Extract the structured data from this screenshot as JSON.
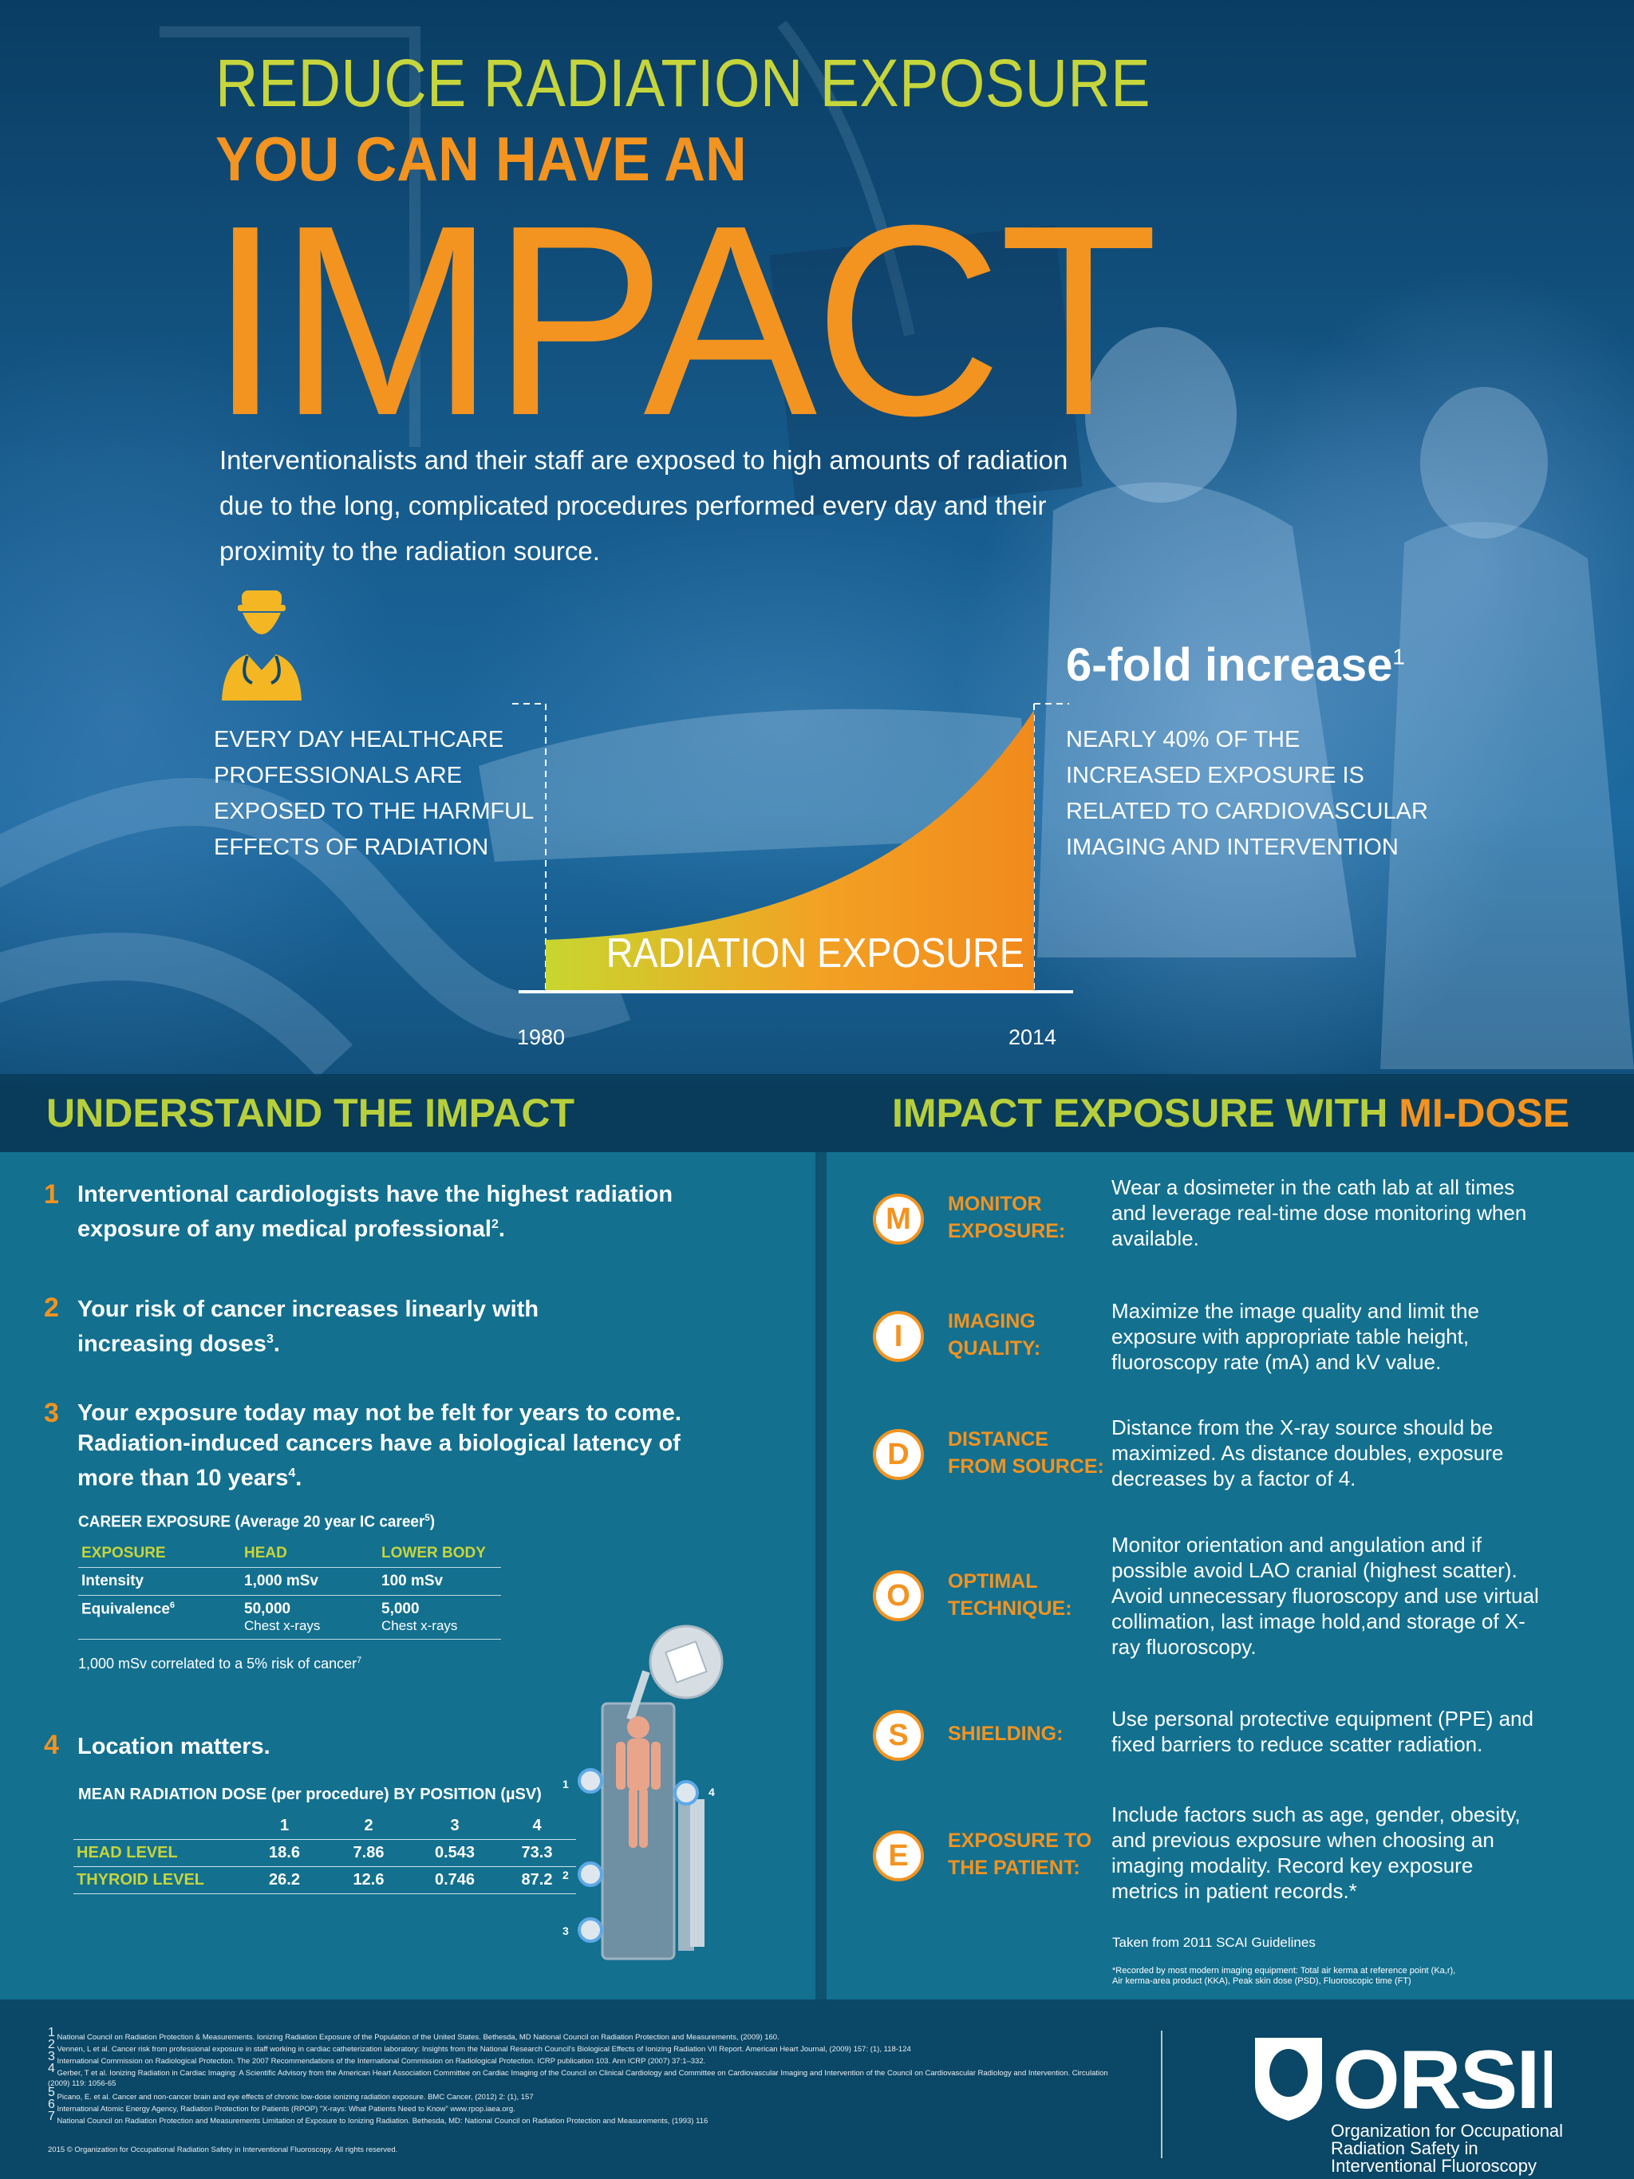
{
  "hero": {
    "title_line1": "REDUCE RADIATION EXPOSURE",
    "title_line2": "YOU CAN HAVE AN",
    "title_line3": "IMPACT",
    "intro": "Interventionalists and their staff are exposed to high amounts of radiation due to the long, complicated procedures performed every day and their proximity to the radiation source.",
    "left_note": "EVERY DAY HEALTHCARE PROFESSIONALS ARE EXPOSED TO THE HARMFUL EFFECTS OF RADIATION",
    "fold_text": "6-fold increase",
    "fold_sup": "1",
    "right_note": "NEARLY 40% OF THE INCREASED EXPOSURE IS RELATED TO CARDIOVASCULAR IMAGING AND INTERVENTION",
    "chart_label": "RADIATION EXPOSURE",
    "year_start": "1980",
    "year_end": "2014"
  },
  "understand": {
    "header": "UNDERSTAND THE IMPACT",
    "points": [
      {
        "num": "1",
        "text": "Interventional cardiologists have the highest radiation exposure of any medical professional",
        "sup": "2",
        "end": "."
      },
      {
        "num": "2",
        "text": "Your risk of cancer increases linearly with increasing doses",
        "sup": "3",
        "end": "."
      },
      {
        "num": "3",
        "text": "Your exposure today may not be felt for years to come. Radiation-induced cancers have a biological latency of more than 10 years",
        "sup": "4",
        "end": "."
      },
      {
        "num": "4",
        "text": "Location matters.",
        "sup": "",
        "end": ""
      }
    ],
    "career": {
      "title": "CAREER EXPOSURE (Average 20 year IC career",
      "title_sup": "5",
      "title_end": ")",
      "headers": [
        "EXPOSURE",
        "HEAD",
        "LOWER BODY"
      ],
      "intensity": {
        "label": "Intensity",
        "head": "1,000 mSv",
        "lower": "100 mSv"
      },
      "equivalence": {
        "label": "Equivalence",
        "sup": "6",
        "head": "50,000",
        "head_sub": "Chest x-rays",
        "lower": "5,000",
        "lower_sub": "Chest x-rays"
      },
      "note": "1,000 mSv correlated to a 5% risk of cancer",
      "note_sup": "7"
    },
    "dose": {
      "title": "MEAN RADIATION DOSE (per procedure) BY POSITION  (µSV)",
      "positions": [
        "1",
        "2",
        "3",
        "4"
      ],
      "head": {
        "label": "HEAD LEVEL",
        "values": [
          "18.6",
          "7.86",
          "0.543",
          "73.3"
        ]
      },
      "thyroid": {
        "label": "THYROID LEVEL",
        "values": [
          "26.2",
          "12.6",
          "0.746",
          "87.2"
        ]
      },
      "markers": [
        "1",
        "2",
        "3",
        "4"
      ]
    }
  },
  "midose": {
    "header_main": "IMPACT EXPOSURE WITH ",
    "header_accent": "MI-DOSE",
    "items": [
      {
        "letter": "M",
        "label1": "MONITOR",
        "label2": "EXPOSURE:",
        "text": "Wear a dosimeter in the cath lab at all times and leverage real-time dose monitoring when available."
      },
      {
        "letter": "I",
        "label1": "IMAGING",
        "label2": "QUALITY:",
        "text": "Maximize the image quality and limit the exposure with appropriate table height, fluoroscopy rate (mA) and kV value."
      },
      {
        "letter": "D",
        "label1": "DISTANCE",
        "label2": "FROM SOURCE:",
        "text": "Distance from the X-ray source should be maximized. As distance doubles, exposure decreases by a factor of 4."
      },
      {
        "letter": "O",
        "label1": "OPTIMAL",
        "label2": "TECHNIQUE:",
        "text": "Monitor orientation and angulation and if possible avoid LAO cranial (highest scatter). Avoid unnecessary fluoroscopy and use virtual collimation, last image hold,and storage of X-ray fluoroscopy."
      },
      {
        "letter": "S",
        "label1": "SHIELDING:",
        "label2": "",
        "text": "Use personal protective equipment (PPE) and fixed barriers to reduce scatter radiation."
      },
      {
        "letter": "E",
        "label1": "EXPOSURE TO",
        "label2": "THE PATIENT:",
        "text": "Include factors such as age, gender, obesity, and previous exposure when choosing an imaging modality. Record key exposure metrics in patient records.*"
      }
    ],
    "source": "Taken from 2011 SCAI Guidelines",
    "recorded_1": "*Recorded by most modern imaging equipment: Total air kerma at reference point (Ka,r),",
    "recorded_2": "Air kerma-area product (KKA), Peak skin dose (PSD), Fluoroscopic time (FT)"
  },
  "footer": {
    "footnotes": [
      {
        "n": "1",
        "text": "National Council on Radiation Protection & Measurements. Ionizing Radiation Exposure of the Population of the United States. Bethesda, MD National Council on Radiation Protection and Measurements, (2009) 160."
      },
      {
        "n": "2",
        "text": "Vennen, L et al. Cancer risk from professional exposure in staff working in cardiac catheterization laboratory: Insights from the National Research Council's Biological Effects of Ionizing Radiation VII Report. American Heart Journal, (2009) 157: (1), 118-124"
      },
      {
        "n": "3",
        "text": "International Commission on Radiological Protection. The 2007 Recommendations of the International Commission on Radiological Protection. ICRP publication 103. Ann ICRP (2007) 37:1–332."
      },
      {
        "n": "4",
        "text": "Gerber, T et al. Ionizing Radiation in Cardiac Imaging: A Scientific Advisory from the American Heart Association Committee on Cardiac Imaging of the Council on Clinical Cardiology and Committee on Cardiovascular Imaging and Intervention of the Council on Cardiovascular Radiology and Intervention. Circulation (2009) 119: 1056-65"
      },
      {
        "n": "5",
        "text": "Picano, E. et al. Cancer and non-cancer brain and eye effects of chronic low-dose ionizing radiation exposure. BMC Cancer, (2012) 2: (1), 157"
      },
      {
        "n": "6",
        "text": "International Atomic Energy Agency, Radiation Protection for Patients (RPOP) \"X-rays: What Patients Need to Know\" www.rpop.iaea.org."
      },
      {
        "n": "7",
        "text": "National Council on Radiation Protection and Measurements Limitation of Exposure to Ionizing Radiation. Bethesda, MD: National Council on Radiation Protection and Measurements, (1993) 116"
      }
    ],
    "copyright": "2015 © Organization for Occupational Radiation Safety in Interventional Fluoroscopy. All rights reserved.",
    "logo_text": "ORSIF",
    "org_line1": "Organization for Occupational",
    "org_line2": "Radiation Safety in",
    "org_line3": "Interventional Fluoroscopy"
  },
  "colors": {
    "orange": "#f39320",
    "lime": "#c6d53c",
    "panel": "#13708f",
    "header": "#083854"
  }
}
